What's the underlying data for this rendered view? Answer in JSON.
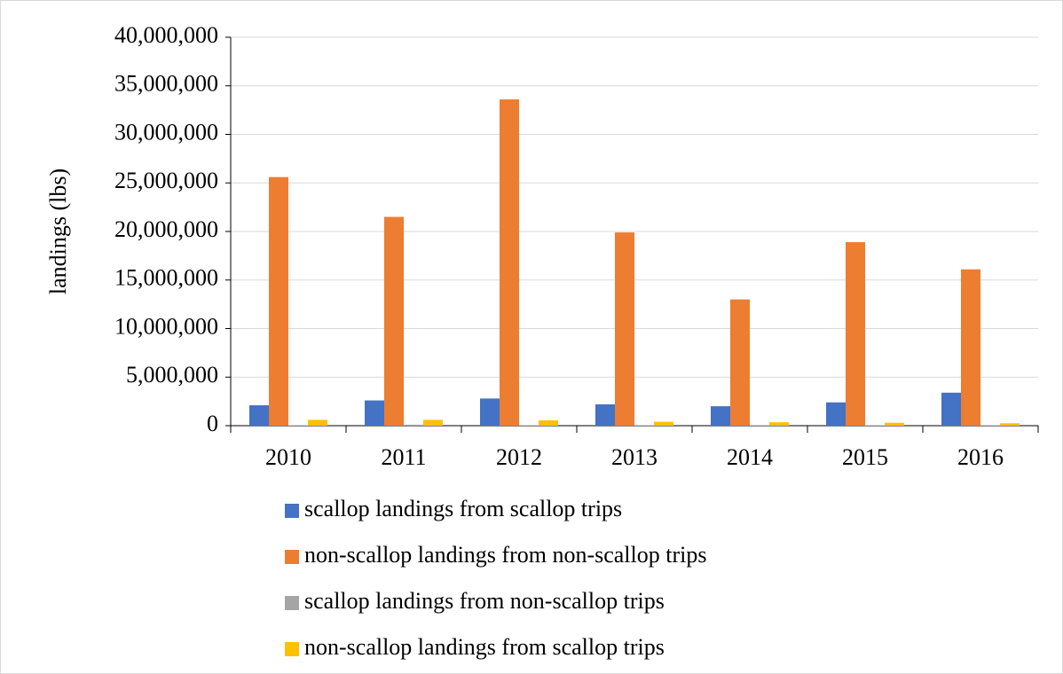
{
  "chart_data": {
    "type": "bar",
    "y_label": "landings (lbs)",
    "categories": [
      "2010",
      "2011",
      "2012",
      "2013",
      "2014",
      "2015",
      "2016"
    ],
    "series": [
      {
        "name": "scallop landings from scallop trips",
        "color": "#4472c4",
        "values": [
          2100000,
          2600000,
          2800000,
          2200000,
          2000000,
          2400000,
          3400000
        ]
      },
      {
        "name": "non-scallop landings from non-scallop trips",
        "color": "#ed7d31",
        "values": [
          25600000,
          21500000,
          33600000,
          19900000,
          13000000,
          18900000,
          16100000
        ]
      },
      {
        "name": "scallop landings from non-scallop trips",
        "color": "#a5a5a5",
        "values": [
          50000,
          100000,
          50000,
          50000,
          50000,
          50000,
          50000
        ]
      },
      {
        "name": "non-scallop landings from scallop trips",
        "color": "#ffc000",
        "values": [
          600000,
          600000,
          550000,
          400000,
          350000,
          300000,
          250000
        ]
      }
    ],
    "ylim": [
      0,
      40000000
    ],
    "yticks": [
      {
        "value": 0,
        "label": "0"
      },
      {
        "value": 5000000,
        "label": "5,000,000"
      },
      {
        "value": 10000000,
        "label": "10,000,000"
      },
      {
        "value": 15000000,
        "label": "15,000,000"
      },
      {
        "value": 20000000,
        "label": "20,000,000"
      },
      {
        "value": 25000000,
        "label": "25,000,000"
      },
      {
        "value": 30000000,
        "label": "30,000,000"
      },
      {
        "value": 35000000,
        "label": "35,000,000"
      },
      {
        "value": 40000000,
        "label": "40,000,000"
      }
    ],
    "grid": true,
    "legend": "bottom"
  }
}
